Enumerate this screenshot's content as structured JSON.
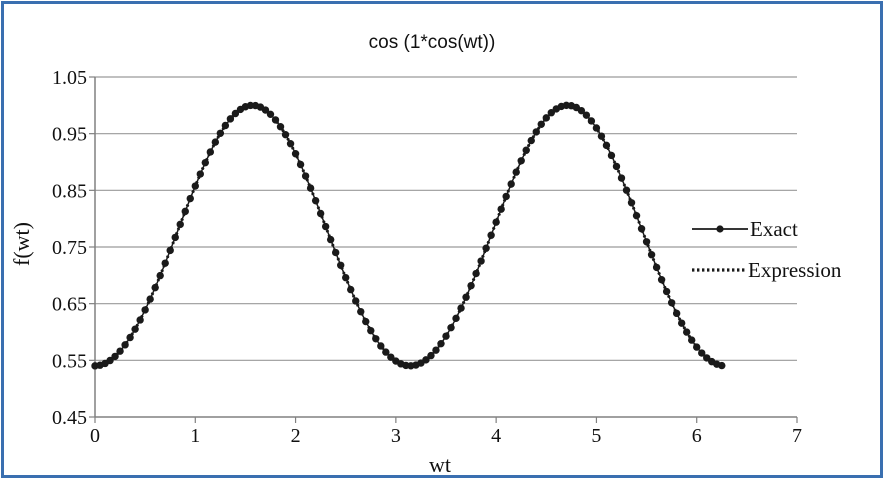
{
  "chart_data": {
    "type": "line",
    "title": "cos (1*cos(wt))",
    "xlabel": "wt",
    "ylabel": "f(wt)",
    "xlim": [
      0,
      7
    ],
    "ylim": [
      0.45,
      1.05
    ],
    "x_ticks": [
      "0",
      "1",
      "2",
      "3",
      "4",
      "5",
      "6",
      "7"
    ],
    "y_ticks": [
      "0.45",
      "0.55",
      "0.65",
      "0.75",
      "0.85",
      "0.95",
      "1.05"
    ],
    "grid": "horizontal",
    "legend_position": "right",
    "x_range": [
      0,
      6.23
    ],
    "x_step": 0.05,
    "series": [
      {
        "name": "Exact",
        "formula": "cos(1*cos(wt))",
        "style": "solid line with circle markers",
        "color": "#1a1a1a"
      },
      {
        "name": "Expression",
        "formula": "cos(1*cos(wt))",
        "style": "dotted",
        "color": "#1a1a1a"
      }
    ]
  }
}
